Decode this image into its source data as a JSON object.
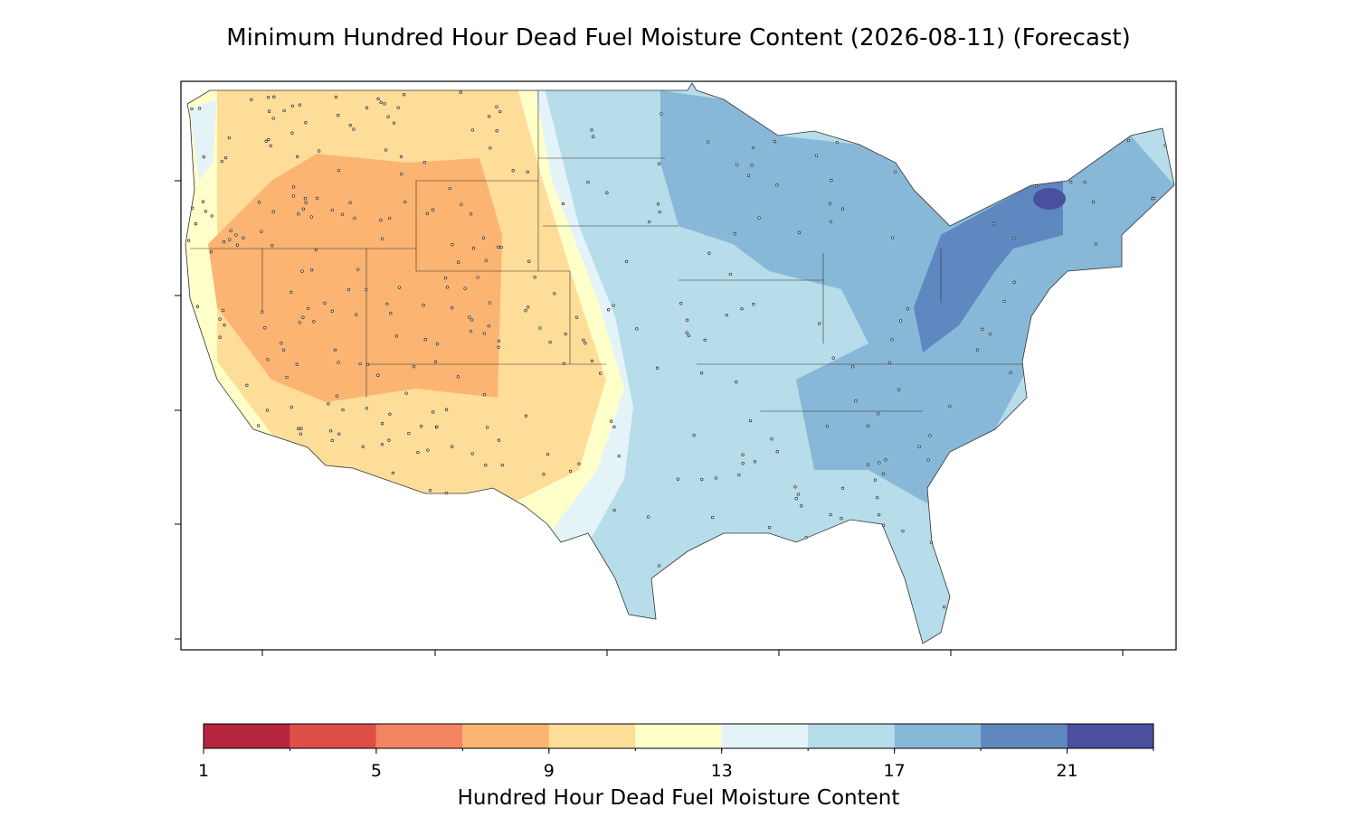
{
  "chart_data": {
    "type": "contour-map",
    "title": "Minimum Hundred Hour Dead Fuel Moisture Content (2026-08-11) (Forecast)",
    "colorbar_label": "Hundred Hour Dead Fuel Moisture Content",
    "levels": [
      1,
      3,
      5,
      7,
      9,
      11,
      13,
      15,
      17,
      19,
      21,
      23
    ],
    "colors": [
      "#b5253f",
      "#dd4f46",
      "#f4845f",
      "#fbb472",
      "#fedd98",
      "#ffffca",
      "#e4f3f8",
      "#b7dcea",
      "#88b8d8",
      "#5f87c0",
      "#4a4f9e"
    ],
    "xlim": [
      1,
      23
    ],
    "xticks": [
      1,
      5,
      9,
      13,
      17,
      21
    ]
  }
}
